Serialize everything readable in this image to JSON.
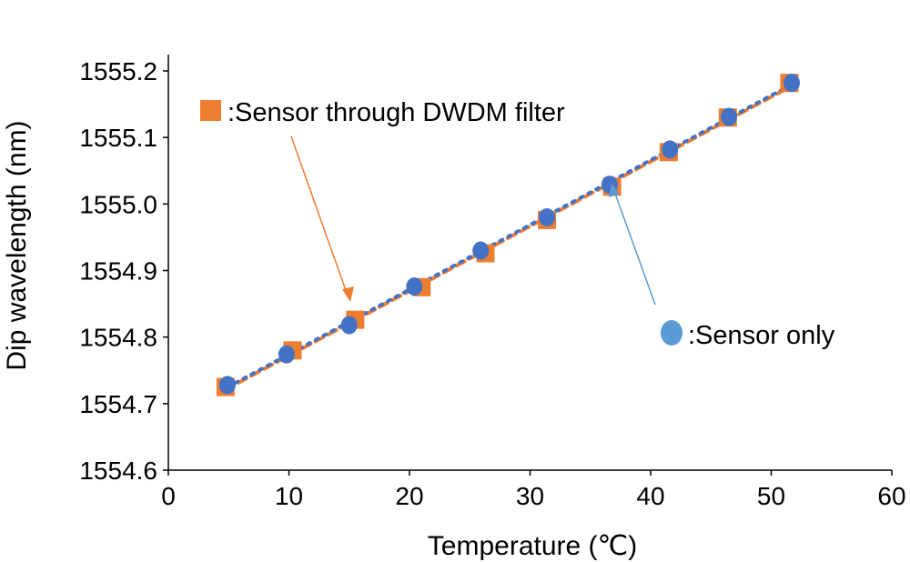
{
  "chart_data": {
    "type": "scatter",
    "title": "",
    "xlabel": "Temperature (℃)",
    "ylabel": "Dip wavelength (nm)",
    "xlim": [
      0,
      60
    ],
    "ylim": [
      1554.6,
      1555.2
    ],
    "xticks": [
      "0",
      "10",
      "20",
      "30",
      "40",
      "50",
      "60"
    ],
    "yticks": [
      "1554.6",
      "1554.7",
      "1554.8",
      "1554.9",
      "1555.0",
      "1555.1",
      "1555.2"
    ],
    "grid": false,
    "series": [
      {
        "name": "Sensor through DWDM filter",
        "legend_label": ":Sensor through DWDM filter",
        "marker": "square",
        "color": "#ED7D31",
        "line": "dashed",
        "x": [
          4.75,
          10.3,
          15.5,
          21.0,
          26.3,
          31.4,
          36.8,
          41.5,
          46.4,
          51.5
        ],
        "y": [
          1554.725,
          1554.78,
          1554.826,
          1554.875,
          1554.926,
          1554.976,
          1555.026,
          1555.078,
          1555.13,
          1555.182
        ]
      },
      {
        "name": "Sensor only",
        "legend_label": ":Sensor only",
        "marker": "circle",
        "color": "#4472C4",
        "legend_color": "#5B9BD5",
        "line": "dotted",
        "x": [
          4.9,
          9.8,
          15.0,
          20.4,
          25.9,
          31.4,
          36.6,
          41.6,
          46.5,
          51.7
        ],
        "y": [
          1554.728,
          1554.774,
          1554.818,
          1554.876,
          1554.93,
          1554.98,
          1555.029,
          1555.082,
          1555.131,
          1555.182
        ]
      }
    ]
  }
}
